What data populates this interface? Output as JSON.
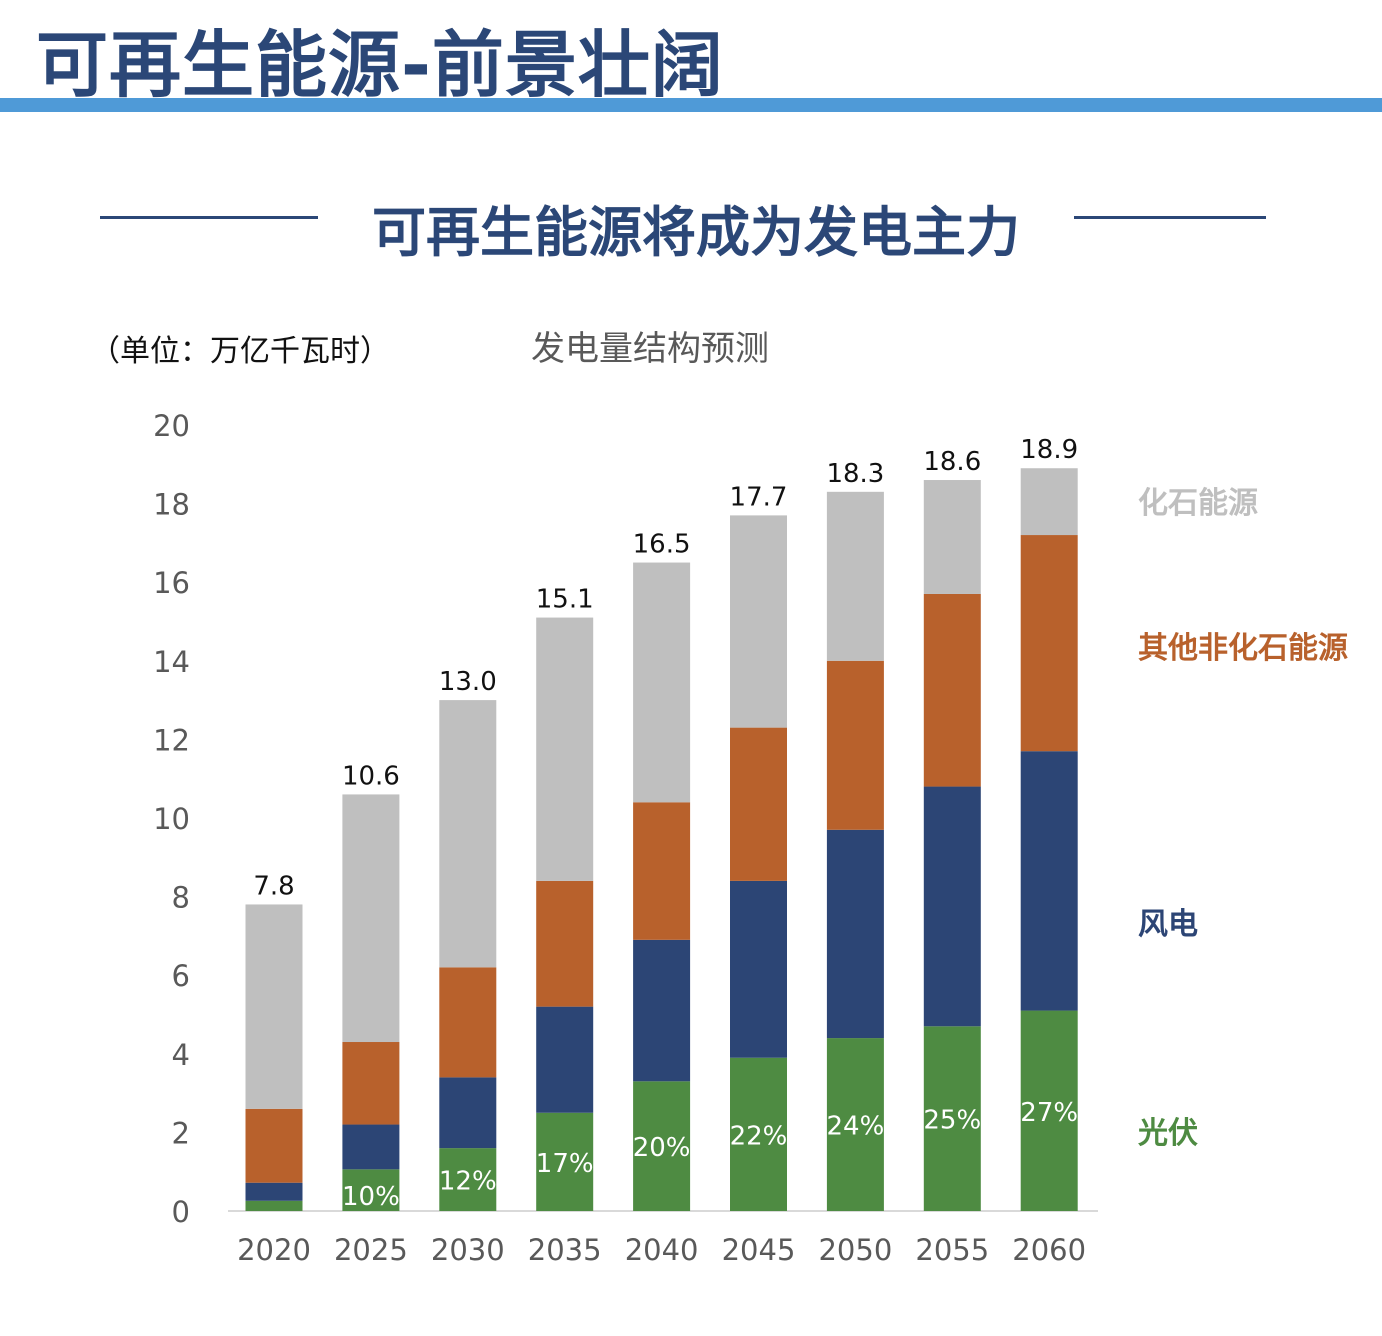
{
  "header": {
    "title": "可再生能源-前景壮阔",
    "subtitle": "可再生能源将成为发电主力"
  },
  "colors": {
    "title_text": "#2b4777",
    "title_bar": "#4f9ad7",
    "solar": "#4e8b42",
    "wind": "#2c4575",
    "other_non_fossil": "#b8612c",
    "fossil": "#bfbfbf"
  },
  "chart_data": {
    "type": "bar",
    "stacked": true,
    "title": "发电量结构预测",
    "unit_label": "（单位：万亿千瓦时）",
    "xlabel": "",
    "ylabel": "",
    "ylim": [
      0,
      20
    ],
    "yticks": [
      0,
      2,
      4,
      6,
      8,
      10,
      12,
      14,
      16,
      18,
      20
    ],
    "gridlines": false,
    "categories": [
      "2020",
      "2025",
      "2030",
      "2035",
      "2040",
      "2045",
      "2050",
      "2055",
      "2060"
    ],
    "series": [
      {
        "name": "光伏",
        "color": "#4e8b42",
        "values": [
          0.26,
          1.06,
          1.6,
          2.5,
          3.3,
          3.9,
          4.4,
          4.7,
          5.1
        ]
      },
      {
        "name": "风电",
        "color": "#2c4575",
        "values": [
          0.46,
          1.14,
          1.8,
          2.7,
          3.6,
          4.5,
          5.3,
          6.1,
          6.6
        ]
      },
      {
        "name": "其他非化石能源",
        "color": "#b8612c",
        "values": [
          1.88,
          2.1,
          2.8,
          3.2,
          3.5,
          3.9,
          4.3,
          4.9,
          5.5
        ]
      },
      {
        "name": "化石能源",
        "color": "#bfbfbf",
        "values": [
          5.2,
          6.3,
          6.8,
          6.7,
          6.1,
          5.4,
          4.3,
          2.9,
          1.7
        ]
      }
    ],
    "totals": [
      "7.8",
      "10.6",
      "13.0",
      "15.1",
      "16.5",
      "17.7",
      "18.3",
      "18.6",
      "18.9"
    ],
    "solar_share_labels": [
      "",
      "10%",
      "12%",
      "17%",
      "20%",
      "22%",
      "24%",
      "25%",
      "27%"
    ],
    "legend": [
      "化石能源",
      "其他非化石能源",
      "风电",
      "光伏"
    ],
    "legend_position": "right"
  }
}
